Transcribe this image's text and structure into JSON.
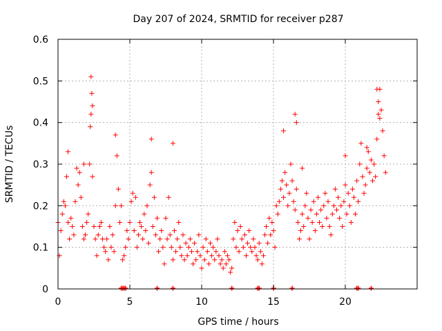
{
  "chart_data": {
    "type": "scatter",
    "title": "Day 207 of 2024, SRMTID for receiver p287",
    "xlabel": "GPS time / hours",
    "ylabel": "SRMTID / TECUs",
    "xlim": [
      0,
      25
    ],
    "ylim": [
      0,
      0.6
    ],
    "x_ticks": [
      0,
      5,
      10,
      15,
      20
    ],
    "x_tick_labels": [
      "0",
      "5",
      "10",
      "15",
      "20"
    ],
    "y_ticks": [
      0,
      0.1,
      0.2,
      0.3,
      0.4,
      0.5,
      0.6
    ],
    "y_tick_labels": [
      "0",
      "0.1",
      "0.2",
      "0.3",
      "0.4",
      "0.5",
      "0.6"
    ],
    "grid": true,
    "marker": "+",
    "color": "#ff0000",
    "series": [
      {
        "name": "SRMTID",
        "x": [
          0.0,
          0.1,
          0.2,
          0.3,
          0.4,
          0.5,
          0.6,
          0.7,
          0.8,
          0.9,
          1.0,
          1.1,
          1.2,
          1.3,
          1.4,
          1.5,
          1.6,
          1.7,
          1.8,
          1.9,
          2.0,
          2.1,
          2.2,
          2.3,
          2.4,
          2.5,
          2.6,
          2.7,
          2.8,
          2.9,
          3.0,
          3.1,
          3.2,
          3.3,
          3.4,
          3.5,
          3.6,
          3.7,
          3.8,
          3.9,
          4.0,
          4.1,
          4.2,
          4.3,
          4.4,
          4.5,
          4.6,
          4.7,
          4.8,
          4.9,
          5.0,
          5.1,
          5.2,
          5.3,
          5.4,
          5.5,
          5.6,
          5.7,
          5.8,
          5.9,
          6.0,
          6.1,
          6.2,
          6.3,
          6.4,
          6.5,
          6.6,
          6.7,
          6.8,
          6.9,
          7.0,
          7.1,
          7.2,
          7.3,
          7.4,
          7.5,
          7.6,
          7.7,
          7.8,
          7.9,
          8.0,
          8.1,
          8.2,
          8.3,
          8.4,
          8.5,
          8.6,
          8.7,
          8.8,
          8.9,
          9.0,
          9.1,
          9.2,
          9.3,
          9.4,
          9.5,
          9.6,
          9.7,
          9.8,
          9.9,
          10.0,
          10.1,
          10.2,
          10.3,
          10.4,
          10.5,
          10.6,
          10.7,
          10.8,
          10.9,
          11.0,
          11.1,
          11.2,
          11.3,
          11.4,
          11.5,
          11.6,
          11.7,
          11.8,
          11.9,
          12.0,
          12.1,
          12.2,
          12.3,
          12.4,
          12.5,
          12.6,
          12.7,
          12.8,
          12.9,
          13.0,
          13.1,
          13.2,
          13.3,
          13.4,
          13.5,
          13.6,
          13.7,
          13.8,
          13.9,
          14.0,
          14.1,
          14.2,
          14.3,
          14.4,
          14.5,
          14.6,
          14.7,
          14.8,
          14.9,
          15.0,
          15.1,
          15.2,
          15.3,
          15.4,
          15.5,
          15.6,
          15.7,
          15.8,
          15.9,
          16.0,
          16.1,
          16.2,
          16.3,
          16.4,
          16.5,
          16.6,
          16.7,
          16.8,
          16.9,
          17.0,
          17.1,
          17.2,
          17.3,
          17.4,
          17.5,
          17.6,
          17.7,
          17.8,
          17.9,
          18.0,
          18.1,
          18.2,
          18.3,
          18.4,
          18.5,
          18.6,
          18.7,
          18.8,
          18.9,
          19.0,
          19.1,
          19.2,
          19.3,
          19.4,
          19.5,
          19.6,
          19.7,
          19.8,
          19.9,
          20.0,
          20.1,
          20.2,
          20.3,
          20.4,
          20.5,
          20.6,
          20.7,
          20.8,
          20.9,
          21.0,
          21.1,
          21.2,
          21.3,
          21.4,
          21.5,
          21.6,
          21.7,
          21.8,
          21.9,
          22.0,
          22.1,
          22.2,
          22.3,
          22.4,
          22.5,
          22.6,
          22.7,
          22.8,
          2.3,
          2.35,
          2.4,
          2.25,
          22.2,
          22.3,
          22.4,
          16.5,
          16.6,
          15.7,
          6.5,
          8.0,
          4.0,
          0.7,
          1.8,
          17.0,
          20.0,
          21.5
        ],
        "y": [
          0.16,
          0.08,
          0.14,
          0.18,
          0.21,
          0.2,
          0.27,
          0.16,
          0.12,
          0.17,
          0.15,
          0.13,
          0.21,
          0.29,
          0.25,
          0.28,
          0.22,
          0.15,
          0.12,
          0.13,
          0.16,
          0.18,
          0.3,
          0.42,
          0.27,
          0.15,
          0.12,
          0.08,
          0.13,
          0.15,
          0.16,
          0.12,
          0.1,
          0.09,
          0.12,
          0.07,
          0.15,
          0.1,
          0.13,
          0.09,
          0.2,
          0.32,
          0.24,
          0.16,
          0.2,
          0.07,
          0.08,
          0.1,
          0.14,
          0.12,
          0.16,
          0.21,
          0.23,
          0.14,
          0.22,
          0.1,
          0.13,
          0.16,
          0.15,
          0.12,
          0.18,
          0.14,
          0.2,
          0.11,
          0.25,
          0.28,
          0.15,
          0.22,
          0.13,
          0.17,
          0.09,
          0.12,
          0.14,
          0.1,
          0.06,
          0.17,
          0.12,
          0.22,
          0.13,
          0.1,
          0.07,
          0.14,
          0.09,
          0.12,
          0.16,
          0.1,
          0.08,
          0.13,
          0.07,
          0.11,
          0.08,
          0.1,
          0.12,
          0.09,
          0.06,
          0.11,
          0.07,
          0.09,
          0.13,
          0.08,
          0.05,
          0.1,
          0.07,
          0.12,
          0.09,
          0.06,
          0.11,
          0.08,
          0.1,
          0.07,
          0.09,
          0.12,
          0.08,
          0.06,
          0.07,
          0.05,
          0.09,
          0.06,
          0.08,
          0.07,
          0.04,
          0.05,
          0.12,
          0.16,
          0.1,
          0.14,
          0.09,
          0.15,
          0.12,
          0.1,
          0.13,
          0.08,
          0.11,
          0.14,
          0.1,
          0.09,
          0.12,
          0.1,
          0.08,
          0.07,
          0.11,
          0.09,
          0.06,
          0.08,
          0.13,
          0.15,
          0.11,
          0.17,
          0.13,
          0.16,
          0.14,
          0.1,
          0.2,
          0.18,
          0.21,
          0.24,
          0.26,
          0.22,
          0.28,
          0.25,
          0.2,
          0.23,
          0.3,
          0.26,
          0.21,
          0.19,
          0.24,
          0.16,
          0.12,
          0.14,
          0.18,
          0.15,
          0.2,
          0.23,
          0.17,
          0.12,
          0.19,
          0.16,
          0.21,
          0.14,
          0.18,
          0.22,
          0.16,
          0.19,
          0.15,
          0.2,
          0.23,
          0.17,
          0.21,
          0.15,
          0.13,
          0.18,
          0.2,
          0.24,
          0.19,
          0.22,
          0.17,
          0.2,
          0.15,
          0.21,
          0.25,
          0.18,
          0.23,
          0.2,
          0.16,
          0.24,
          0.22,
          0.18,
          0.26,
          0.21,
          0.3,
          0.35,
          0.27,
          0.23,
          0.25,
          0.29,
          0.33,
          0.28,
          0.31,
          0.26,
          0.3,
          0.27,
          0.36,
          0.42,
          0.48,
          0.43,
          0.38,
          0.32,
          0.28,
          0.51,
          0.47,
          0.44,
          0.39,
          0.48,
          0.45,
          0.41,
          0.42,
          0.4,
          0.38,
          0.36,
          0.35,
          0.37,
          0.33,
          0.3,
          0.29,
          0.32,
          0.34
        ]
      }
    ],
    "bottom_markers": {
      "y": 0,
      "x": [
        4.4,
        4.5,
        4.6,
        4.7,
        6.9,
        8.0,
        12.1,
        13.9,
        14.0,
        15.0,
        16.3,
        20.8,
        20.9,
        21.8
      ]
    }
  }
}
